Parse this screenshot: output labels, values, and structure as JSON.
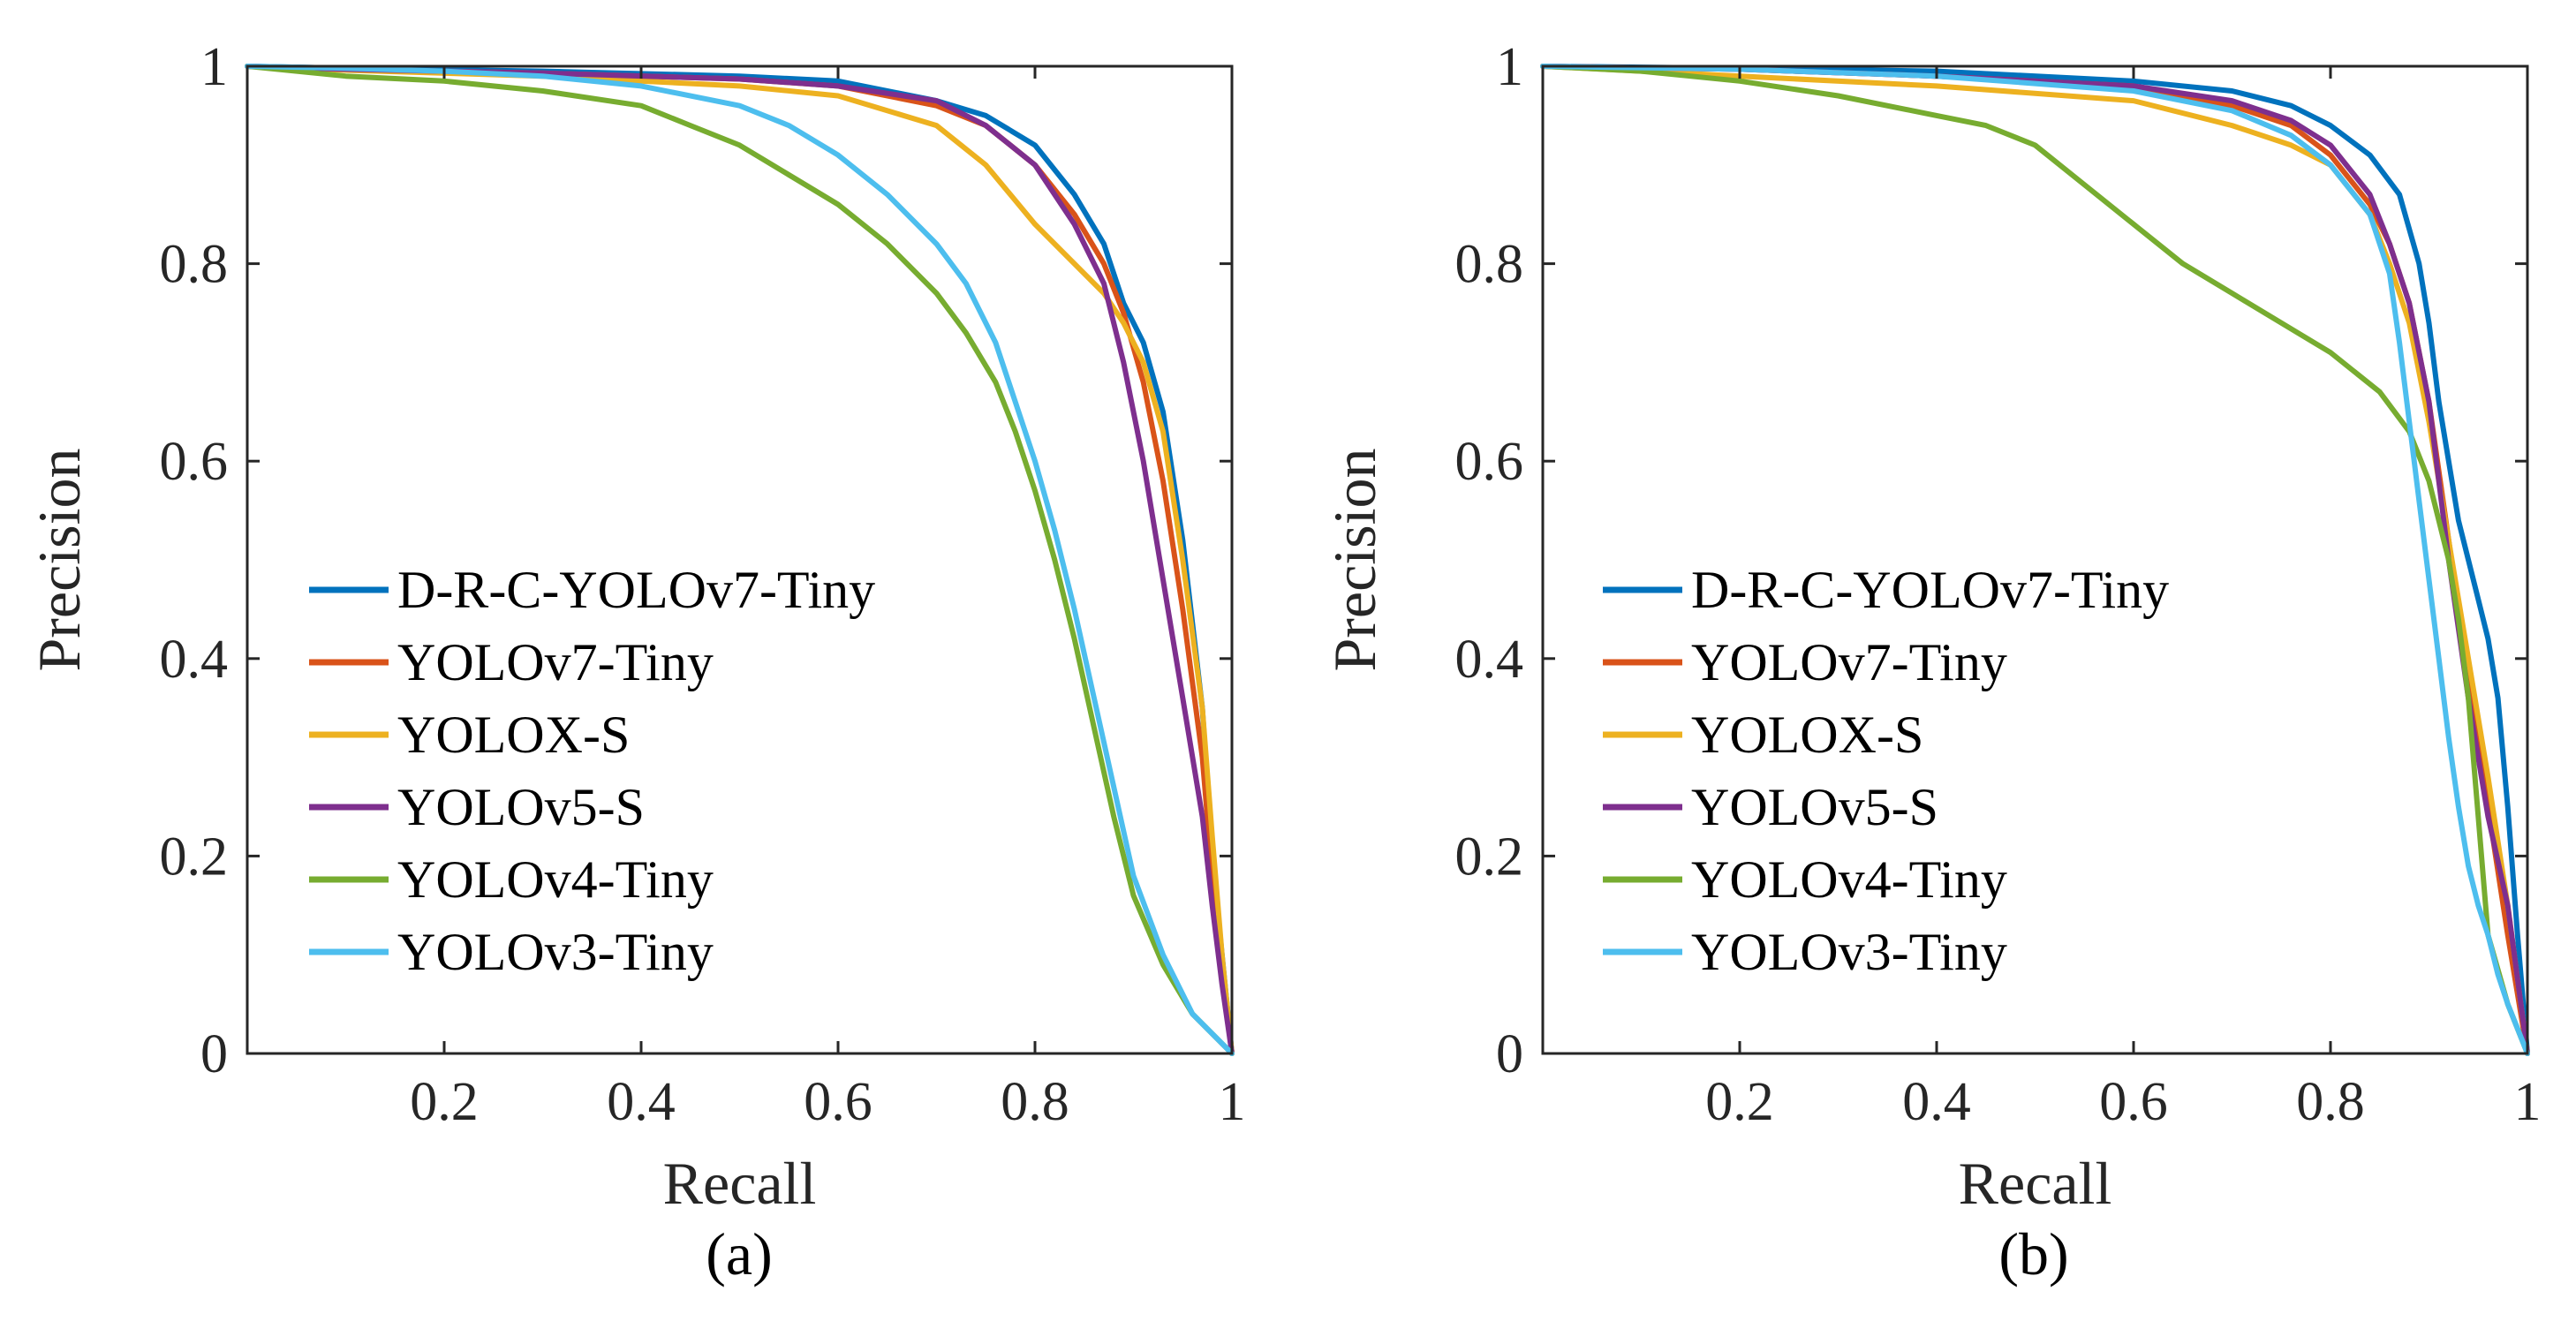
{
  "chart_data": [
    {
      "type": "line",
      "caption": "(a)",
      "xlabel": "Recall",
      "ylabel": "Precision",
      "xlim": [
        0,
        1
      ],
      "ylim": [
        0,
        1
      ],
      "xticks": [
        0.2,
        0.4,
        0.6,
        0.8,
        1
      ],
      "xtick_labels": [
        "0.2",
        "0.4",
        "0.6",
        "0.8",
        "1"
      ],
      "yticks": [
        0,
        0.2,
        0.4,
        0.6,
        0.8,
        1
      ],
      "ytick_labels": [
        "0",
        "0.2",
        "0.4",
        "0.6",
        "0.8",
        "1"
      ],
      "grid": false,
      "legend_position": "center-left",
      "series": [
        {
          "name": "D-R-C-YOLOv7-Tiny",
          "color": "#0072BD",
          "x": [
            0,
            0.1,
            0.3,
            0.5,
            0.6,
            0.7,
            0.75,
            0.8,
            0.84,
            0.87,
            0.89,
            0.91,
            0.93,
            0.95,
            0.97,
            0.98,
            0.99,
            1.0
          ],
          "y": [
            1.0,
            0.998,
            0.995,
            0.99,
            0.985,
            0.965,
            0.95,
            0.92,
            0.87,
            0.82,
            0.76,
            0.72,
            0.65,
            0.52,
            0.35,
            0.2,
            0.1,
            0.0
          ]
        },
        {
          "name": "YOLOv7-Tiny",
          "color": "#D95319",
          "x": [
            0,
            0.1,
            0.3,
            0.5,
            0.6,
            0.7,
            0.75,
            0.8,
            0.84,
            0.87,
            0.89,
            0.91,
            0.93,
            0.95,
            0.97,
            0.98,
            0.99,
            1.0
          ],
          "y": [
            1.0,
            0.997,
            0.993,
            0.987,
            0.98,
            0.96,
            0.94,
            0.9,
            0.85,
            0.8,
            0.75,
            0.68,
            0.58,
            0.45,
            0.3,
            0.18,
            0.08,
            0.0
          ]
        },
        {
          "name": "YOLOX-S",
          "color": "#EDB120",
          "x": [
            0,
            0.1,
            0.3,
            0.5,
            0.6,
            0.7,
            0.75,
            0.8,
            0.84,
            0.87,
            0.89,
            0.91,
            0.93,
            0.95,
            0.97,
            0.98,
            0.99,
            1.0
          ],
          "y": [
            1.0,
            0.996,
            0.99,
            0.98,
            0.97,
            0.94,
            0.9,
            0.84,
            0.8,
            0.77,
            0.74,
            0.7,
            0.63,
            0.5,
            0.35,
            0.22,
            0.1,
            0.0
          ]
        },
        {
          "name": "YOLOv5-S",
          "color": "#7E2F8E",
          "x": [
            0,
            0.1,
            0.3,
            0.5,
            0.6,
            0.7,
            0.75,
            0.8,
            0.84,
            0.87,
            0.89,
            0.91,
            0.93,
            0.95,
            0.97,
            0.98,
            0.99,
            1.0
          ],
          "y": [
            1.0,
            0.997,
            0.993,
            0.987,
            0.98,
            0.965,
            0.94,
            0.9,
            0.84,
            0.78,
            0.7,
            0.6,
            0.48,
            0.36,
            0.24,
            0.15,
            0.07,
            0.0
          ]
        },
        {
          "name": "YOLOv4-Tiny",
          "color": "#77AC30",
          "x": [
            0,
            0.1,
            0.2,
            0.3,
            0.4,
            0.45,
            0.5,
            0.55,
            0.6,
            0.65,
            0.7,
            0.73,
            0.76,
            0.78,
            0.8,
            0.82,
            0.84,
            0.86,
            0.88,
            0.9,
            0.93,
            0.96,
            1.0
          ],
          "y": [
            1.0,
            0.99,
            0.985,
            0.975,
            0.96,
            0.94,
            0.92,
            0.89,
            0.86,
            0.82,
            0.77,
            0.73,
            0.68,
            0.63,
            0.57,
            0.5,
            0.42,
            0.33,
            0.24,
            0.16,
            0.09,
            0.04,
            0.0
          ]
        },
        {
          "name": "YOLOv3-Tiny",
          "color": "#4DBEEE",
          "x": [
            0,
            0.1,
            0.2,
            0.3,
            0.4,
            0.5,
            0.55,
            0.6,
            0.65,
            0.7,
            0.73,
            0.76,
            0.78,
            0.8,
            0.82,
            0.84,
            0.86,
            0.88,
            0.9,
            0.93,
            0.96,
            1.0
          ],
          "y": [
            1.0,
            0.998,
            0.995,
            0.99,
            0.98,
            0.96,
            0.94,
            0.91,
            0.87,
            0.82,
            0.78,
            0.72,
            0.66,
            0.6,
            0.53,
            0.45,
            0.36,
            0.27,
            0.18,
            0.1,
            0.04,
            0.0
          ]
        }
      ]
    },
    {
      "type": "line",
      "caption": "(b)",
      "xlabel": "Recall",
      "ylabel": "Precision",
      "xlim": [
        0,
        1
      ],
      "ylim": [
        0,
        1
      ],
      "xticks": [
        0.2,
        0.4,
        0.6,
        0.8,
        1
      ],
      "xtick_labels": [
        "0.2",
        "0.4",
        "0.6",
        "0.8",
        "1"
      ],
      "yticks": [
        0,
        0.2,
        0.4,
        0.6,
        0.8,
        1
      ],
      "ytick_labels": [
        "0",
        "0.2",
        "0.4",
        "0.6",
        "0.8",
        "1"
      ],
      "grid": false,
      "legend_position": "center-left",
      "series": [
        {
          "name": "D-R-C-YOLOv7-Tiny",
          "color": "#0072BD",
          "x": [
            0,
            0.2,
            0.4,
            0.6,
            0.7,
            0.76,
            0.8,
            0.84,
            0.87,
            0.89,
            0.9,
            0.91,
            0.92,
            0.93,
            0.94,
            0.95,
            0.96,
            0.97,
            0.98,
            0.99,
            1.0
          ],
          "y": [
            1.0,
            0.998,
            0.995,
            0.985,
            0.975,
            0.96,
            0.94,
            0.91,
            0.87,
            0.8,
            0.74,
            0.66,
            0.6,
            0.54,
            0.5,
            0.46,
            0.42,
            0.36,
            0.25,
            0.12,
            0.0
          ]
        },
        {
          "name": "YOLOv7-Tiny",
          "color": "#D95319",
          "x": [
            0,
            0.2,
            0.4,
            0.6,
            0.7,
            0.76,
            0.8,
            0.84,
            0.86,
            0.88,
            0.9,
            0.92,
            0.94,
            0.96,
            0.98,
            1.0
          ],
          "y": [
            1.0,
            0.997,
            0.99,
            0.98,
            0.96,
            0.94,
            0.91,
            0.86,
            0.82,
            0.76,
            0.66,
            0.52,
            0.38,
            0.25,
            0.12,
            0.0
          ]
        },
        {
          "name": "YOLOX-S",
          "color": "#EDB120",
          "x": [
            0,
            0.2,
            0.4,
            0.6,
            0.7,
            0.76,
            0.8,
            0.84,
            0.86,
            0.88,
            0.9,
            0.92,
            0.94,
            0.96,
            0.98,
            1.0
          ],
          "y": [
            1.0,
            0.99,
            0.98,
            0.965,
            0.94,
            0.92,
            0.9,
            0.85,
            0.8,
            0.74,
            0.64,
            0.52,
            0.4,
            0.28,
            0.15,
            0.0
          ]
        },
        {
          "name": "YOLOv5-S",
          "color": "#7E2F8E",
          "x": [
            0,
            0.2,
            0.4,
            0.6,
            0.7,
            0.76,
            0.8,
            0.84,
            0.86,
            0.88,
            0.9,
            0.92,
            0.94,
            0.96,
            0.98,
            1.0
          ],
          "y": [
            1.0,
            0.997,
            0.99,
            0.98,
            0.965,
            0.945,
            0.92,
            0.87,
            0.82,
            0.76,
            0.66,
            0.5,
            0.36,
            0.24,
            0.15,
            0.0
          ]
        },
        {
          "name": "YOLOv4-Tiny",
          "color": "#77AC30",
          "x": [
            0,
            0.1,
            0.2,
            0.3,
            0.4,
            0.45,
            0.5,
            0.55,
            0.6,
            0.65,
            0.7,
            0.75,
            0.8,
            0.85,
            0.88,
            0.9,
            0.92,
            0.93,
            0.94,
            0.95,
            0.96,
            0.98,
            1.0
          ],
          "y": [
            1.0,
            0.995,
            0.985,
            0.97,
            0.95,
            0.94,
            0.92,
            0.88,
            0.84,
            0.8,
            0.77,
            0.74,
            0.71,
            0.67,
            0.63,
            0.58,
            0.5,
            0.44,
            0.36,
            0.24,
            0.12,
            0.05,
            0.0
          ]
        },
        {
          "name": "YOLOv3-Tiny",
          "color": "#4DBEEE",
          "x": [
            0,
            0.2,
            0.4,
            0.6,
            0.7,
            0.76,
            0.8,
            0.84,
            0.86,
            0.87,
            0.88,
            0.89,
            0.9,
            0.91,
            0.92,
            0.93,
            0.94,
            0.95,
            0.96,
            0.97,
            0.98,
            1.0
          ],
          "y": [
            1.0,
            0.997,
            0.99,
            0.975,
            0.955,
            0.93,
            0.9,
            0.85,
            0.79,
            0.72,
            0.64,
            0.56,
            0.48,
            0.4,
            0.32,
            0.25,
            0.19,
            0.15,
            0.12,
            0.08,
            0.05,
            0.0
          ]
        }
      ]
    }
  ]
}
